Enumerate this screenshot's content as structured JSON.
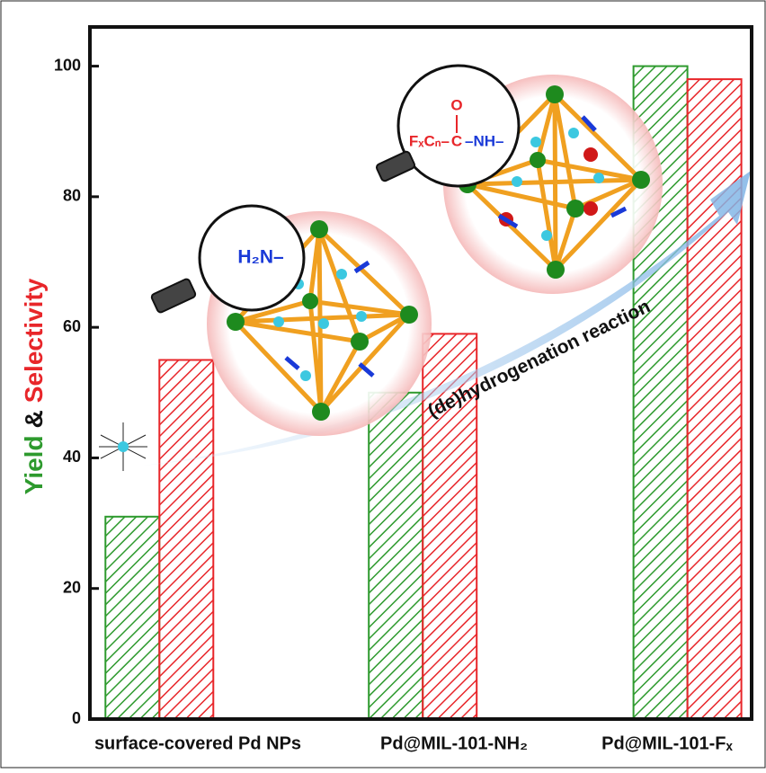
{
  "chart_data": {
    "type": "bar",
    "categories": [
      "surface-covered Pd NPs",
      "Pd@MIL-101-NH₂",
      "Pd@MIL-101-Fₓ"
    ],
    "series": [
      {
        "name": "Yield",
        "color": "#2e9a2e",
        "values": [
          31,
          50,
          100
        ]
      },
      {
        "name": "Selectivity",
        "color": "#e8262a",
        "values": [
          55,
          59,
          98
        ]
      }
    ],
    "y_label_joiner": "&",
    "ylim": [
      0,
      106
    ],
    "yticks": [
      0,
      20,
      40,
      60,
      80,
      100
    ],
    "annotations": {
      "arrow": "(de)hydrogenation reaction",
      "amine": "H₂N–",
      "amide_chain": "FₓCₙ–",
      "amide_c": "C",
      "amide_o": "O",
      "amide_nh": "–NH–"
    }
  }
}
